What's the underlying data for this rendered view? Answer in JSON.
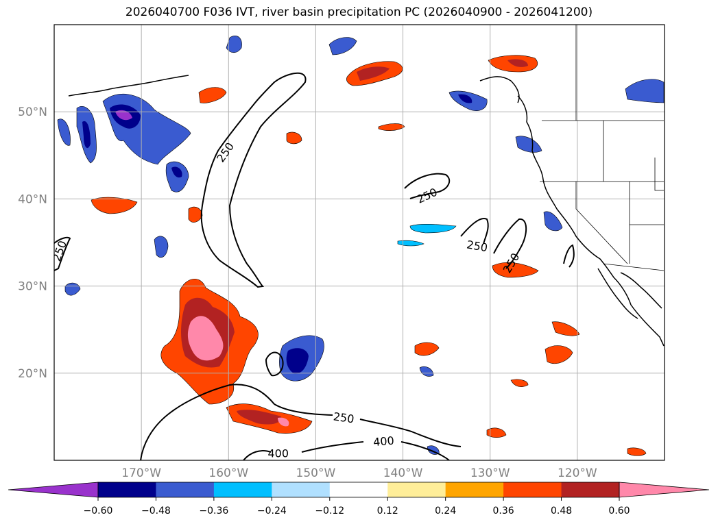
{
  "title": "2026040700 F036 IVT, river basin precipitation PC (2026040900 - 2026041200)",
  "lat_labels": [
    {
      "text": "50°N",
      "lat": 50
    },
    {
      "text": "40°N",
      "lat": 40
    },
    {
      "text": "30°N",
      "lat": 30
    },
    {
      "text": "20°N",
      "lat": 20
    }
  ],
  "lon_labels": [
    {
      "text": "170°W",
      "lon": -170
    },
    {
      "text": "160°W",
      "lon": -160
    },
    {
      "text": "150°W",
      "lon": -150
    },
    {
      "text": "140°W",
      "lon": -140
    },
    {
      "text": "130°W",
      "lon": -130
    },
    {
      "text": "120°W",
      "lon": -120
    }
  ],
  "map_extent": {
    "lon_min": -180,
    "lon_max": -110,
    "lat_min": 10,
    "lat_max": 60
  },
  "contour_labels": [
    {
      "text": "250",
      "lon": -160.3,
      "lat": 45.3,
      "angle": -55
    },
    {
      "text": "250",
      "lon": -137.2,
      "lat": 40.3,
      "angle": -25
    },
    {
      "text": "250",
      "lon": -179.3,
      "lat": 34.0,
      "angle": -70
    },
    {
      "text": "250",
      "lon": -131.5,
      "lat": 34.5,
      "angle": 10
    },
    {
      "text": "250",
      "lon": -127.5,
      "lat": 32.6,
      "angle": -60
    },
    {
      "text": "250",
      "lon": -146.8,
      "lat": 14.8,
      "angle": 8
    },
    {
      "text": "400",
      "lon": -142.2,
      "lat": 12.1,
      "angle": -5
    },
    {
      "text": "400",
      "lon": -154.3,
      "lat": 10.7,
      "angle": 0
    }
  ],
  "colorbar": {
    "colors": [
      "#9932cc",
      "#00008b",
      "#3a5bd0",
      "#00bfff",
      "#b0e0ff",
      "#ffffff",
      "#ffee99",
      "#ffa500",
      "#ff4500",
      "#b22222",
      "#ff88aa"
    ],
    "tick_labels": [
      "−0.60",
      "−0.48",
      "−0.36",
      "−0.24",
      "−0.12",
      "0.12",
      "0.24",
      "0.36",
      "0.48",
      "0.60"
    ],
    "levels": [
      -0.6,
      -0.48,
      -0.36,
      -0.24,
      -0.12,
      0.12,
      0.24,
      0.36,
      0.48,
      0.6
    ]
  }
}
